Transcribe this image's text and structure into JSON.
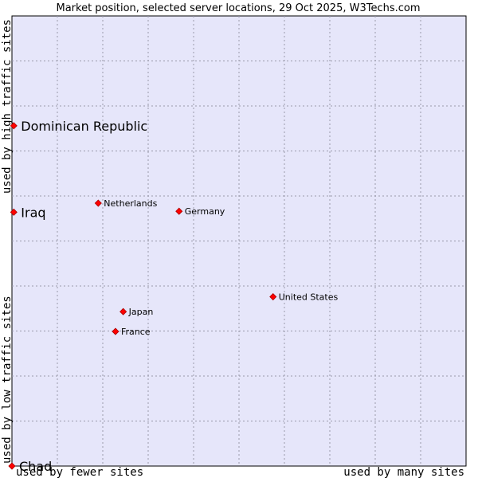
{
  "chart_data": {
    "type": "scatter",
    "title": "Market position, selected server locations, 29 Oct 2025, W3Techs.com",
    "xlabel_low": "used by fewer sites",
    "xlabel_high": "used by many sites",
    "ylabel_low": "used by low traffic sites",
    "ylabel_high": "used by high traffic sites",
    "xlim": [
      0,
      100
    ],
    "ylim": [
      0,
      100
    ],
    "grid": true,
    "colors": {
      "plot_bg": "#e6e6fa",
      "grid": "#9999aa",
      "marker": "#ff0000",
      "marker_edge": "#aa0000"
    },
    "points": [
      {
        "name": "Dominican Republic",
        "x": 0.4,
        "y": 75.6,
        "label_size": "big"
      },
      {
        "name": "Iraq",
        "x": 0.4,
        "y": 56.4,
        "label_size": "big"
      },
      {
        "name": "Chad",
        "x": 0.0,
        "y": 0.0,
        "label_size": "big"
      },
      {
        "name": "Netherlands",
        "x": 19.0,
        "y": 58.4,
        "label_size": "small"
      },
      {
        "name": "Germany",
        "x": 36.8,
        "y": 56.6,
        "label_size": "small"
      },
      {
        "name": "United States",
        "x": 57.5,
        "y": 37.6,
        "label_size": "small"
      },
      {
        "name": "Japan",
        "x": 24.5,
        "y": 34.3,
        "label_size": "small"
      },
      {
        "name": "France",
        "x": 22.8,
        "y": 29.9,
        "label_size": "small"
      }
    ]
  }
}
